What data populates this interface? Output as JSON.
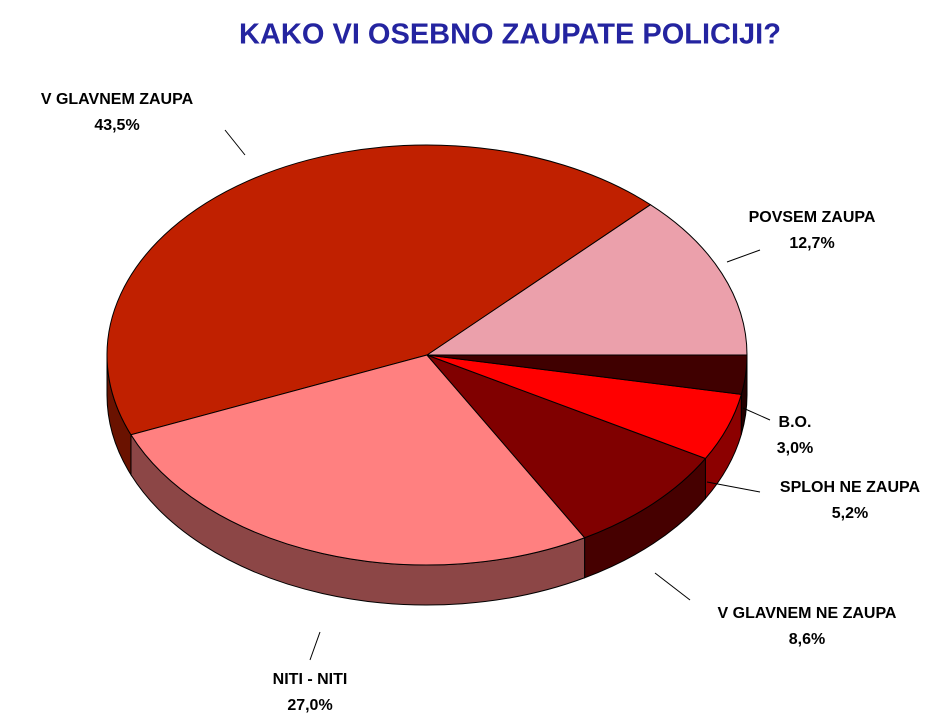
{
  "chart_data": {
    "type": "pie",
    "title": "KAKO VI OSEBNO ZAUPATE POLICIJI?",
    "categories": [
      "POVSEM ZAUPA",
      "V GLAVNEM ZAUPA",
      "NITI - NITI",
      "V GLAVNEM NE ZAUPA",
      "SPLOH NE ZAUPA",
      "B.O."
    ],
    "values": [
      12.7,
      43.5,
      27.0,
      8.6,
      5.2,
      3.0
    ],
    "value_labels": [
      "12,7%",
      "43,5%",
      "27,0%",
      "8,6%",
      "5,2%",
      "3,0%"
    ],
    "colors": [
      "#eba0ab",
      "#c02000",
      "#ff8080",
      "#800000",
      "#ff0000",
      "#400000"
    ]
  }
}
